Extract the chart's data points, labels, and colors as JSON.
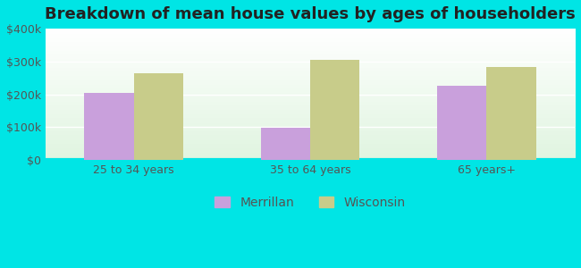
{
  "title": "Breakdown of mean house values by ages of householders",
  "categories": [
    "25 to 34 years",
    "35 to 64 years",
    "65 years+"
  ],
  "merrillan_values": [
    203000,
    97000,
    225000
  ],
  "wisconsin_values": [
    265000,
    305000,
    282000
  ],
  "merrillan_color": "#c9a0dc",
  "wisconsin_color": "#c8cc8a",
  "ylim": [
    0,
    400000
  ],
  "yticks": [
    0,
    100000,
    200000,
    300000,
    400000
  ],
  "ytick_labels": [
    "$0",
    "$100k",
    "$200k",
    "$300k",
    "$400k"
  ],
  "figure_bg": "#00e5e5",
  "bar_width": 0.28,
  "title_fontsize": 13,
  "tick_fontsize": 9,
  "legend_fontsize": 10,
  "grid_color": "#ccddcc"
}
